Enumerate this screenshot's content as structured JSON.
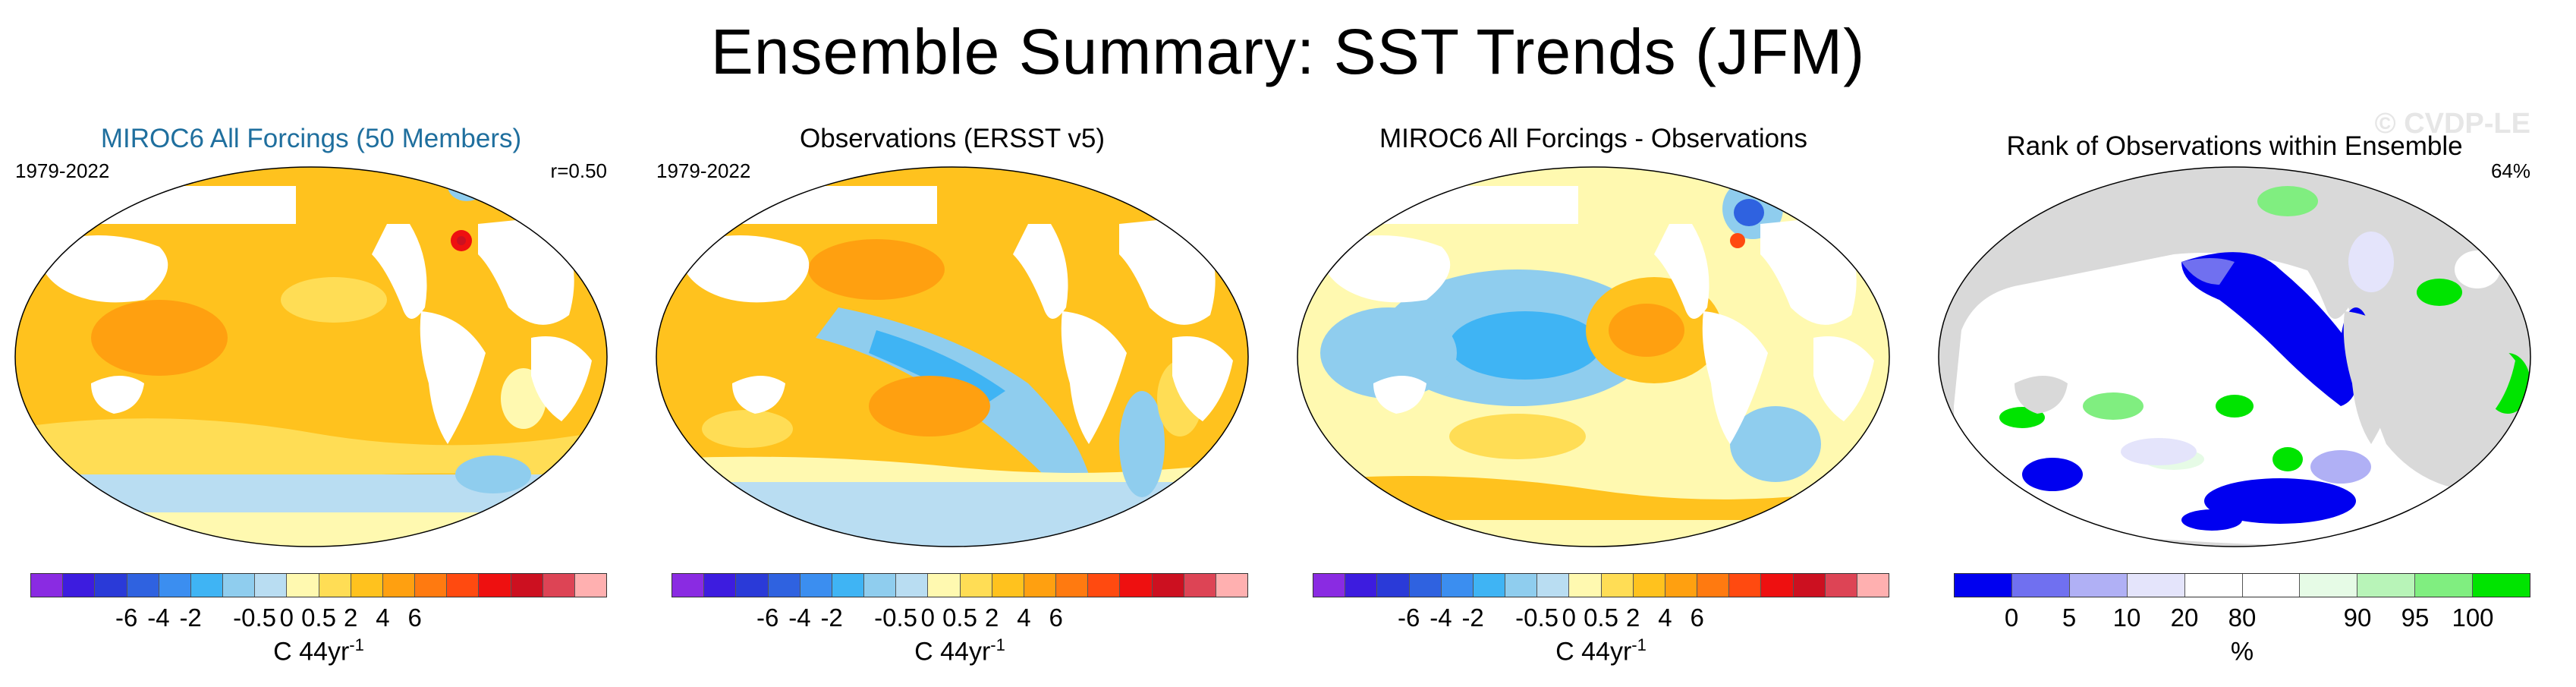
{
  "title": "Ensemble Summary: SST Trends (JFM)",
  "panels": [
    {
      "title": "MIROC6 All Forcings (50 Members)",
      "title_color": "#1f6f9e",
      "period": "1979-2022",
      "stat": "r=0.50",
      "colorbar": {
        "colors": [
          "#8a2be2",
          "#3d1cdf",
          "#2a3ad8",
          "#2f62e0",
          "#3b8ef0",
          "#3fb4f4",
          "#8fcdee",
          "#b9ddf2",
          "#fff9b0",
          "#ffdd55",
          "#ffc21e",
          "#ffa010",
          "#ff7a10",
          "#ff4a10",
          "#ee1010",
          "#cc1020",
          "#dd4455",
          "#ffb0b0"
        ],
        "tick_labels": [
          "-6",
          "-4",
          "-2",
          "-0.5",
          "0",
          "0.5",
          "2",
          "4",
          "6"
        ],
        "unit_text": "C 44yr",
        "unit_sup": "-1"
      }
    },
    {
      "title": "Observations (ERSST v5)",
      "period": "1979-2022",
      "colorbar": {
        "colors": [
          "#8a2be2",
          "#3d1cdf",
          "#2a3ad8",
          "#2f62e0",
          "#3b8ef0",
          "#3fb4f4",
          "#8fcdee",
          "#b9ddf2",
          "#fff9b0",
          "#ffdd55",
          "#ffc21e",
          "#ffa010",
          "#ff7a10",
          "#ff4a10",
          "#ee1010",
          "#cc1020",
          "#dd4455",
          "#ffb0b0"
        ],
        "tick_labels": [
          "-6",
          "-4",
          "-2",
          "-0.5",
          "0",
          "0.5",
          "2",
          "4",
          "6"
        ],
        "unit_text": "C 44yr",
        "unit_sup": "-1"
      }
    },
    {
      "title": "MIROC6 All Forcings - Observations",
      "colorbar": {
        "colors": [
          "#8a2be2",
          "#3d1cdf",
          "#2a3ad8",
          "#2f62e0",
          "#3b8ef0",
          "#3fb4f4",
          "#8fcdee",
          "#b9ddf2",
          "#fff9b0",
          "#ffdd55",
          "#ffc21e",
          "#ffa010",
          "#ff7a10",
          "#ff4a10",
          "#ee1010",
          "#cc1020",
          "#dd4455",
          "#ffb0b0"
        ],
        "tick_labels": [
          "-6",
          "-4",
          "-2",
          "-0.5",
          "0",
          "0.5",
          "2",
          "4",
          "6"
        ],
        "unit_text": "C 44yr",
        "unit_sup": "-1"
      }
    },
    {
      "title": "Rank of Observations within Ensemble",
      "stat": "64%",
      "watermark": "© CVDP-LE",
      "colorbar": {
        "colors": [
          "#0000f0",
          "#7070f0",
          "#b0b0f5",
          "#e4e4fb",
          "#ffffff",
          "#ffffff",
          "#e6fbe6",
          "#b8f4b8",
          "#80ee80",
          "#00e400"
        ],
        "tick_labels": [
          "0",
          "5",
          "10",
          "20",
          "80",
          "90",
          "95",
          "100"
        ],
        "unit_text": "%",
        "unit_sup": ""
      }
    }
  ]
}
